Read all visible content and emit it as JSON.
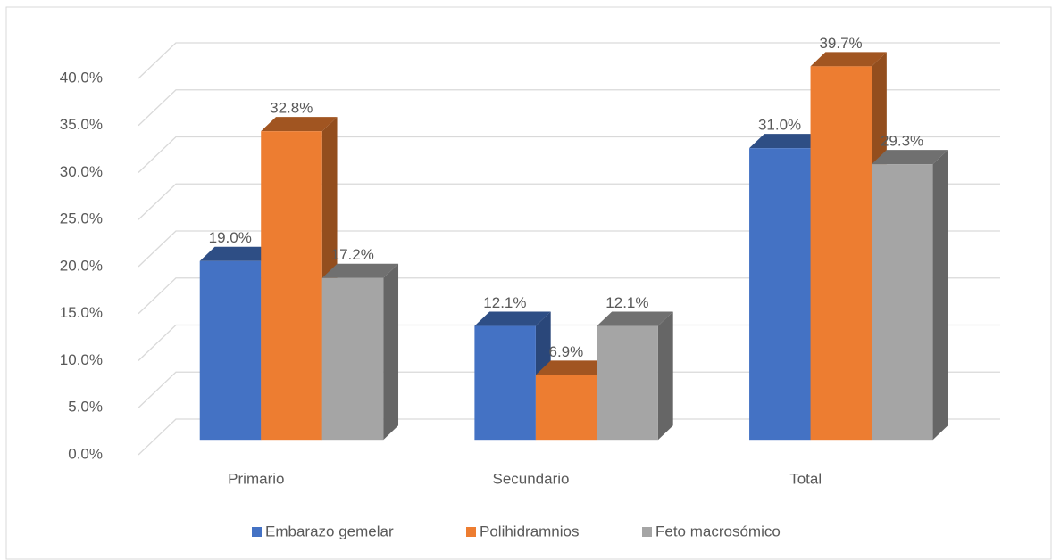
{
  "chart_data": {
    "type": "bar3d",
    "categories": [
      "Primario",
      "Secundario",
      "Total"
    ],
    "series": [
      {
        "name": "Embarazo gemelar",
        "color": "#4472c4",
        "values": [
          19.0,
          12.1,
          31.0
        ],
        "value_labels": [
          "19.0%",
          "12.1%",
          "31.0%"
        ]
      },
      {
        "name": "Polihidramnios",
        "color": "#ed7d31",
        "values": [
          32.8,
          6.9,
          39.7
        ],
        "value_labels": [
          "32.8%",
          "6.9%",
          "39.7%"
        ]
      },
      {
        "name": "Feto macrosómico",
        "color": "#a5a5a5",
        "values": [
          17.2,
          12.1,
          29.3
        ],
        "value_labels": [
          "17.2%",
          "12.1%",
          "29.3%"
        ]
      }
    ],
    "ylim": [
      0,
      40
    ],
    "yticks": [
      {
        "value": 0,
        "label": "0.0%"
      },
      {
        "value": 5,
        "label": "5.0%"
      },
      {
        "value": 10,
        "label": "10.0%"
      },
      {
        "value": 15,
        "label": "15.0%"
      },
      {
        "value": 20,
        "label": "20.0%"
      },
      {
        "value": 25,
        "label": "25.0%"
      },
      {
        "value": 30,
        "label": "30.0%"
      },
      {
        "value": 35,
        "label": "35.0%"
      },
      {
        "value": 40,
        "label": "40.0%"
      }
    ],
    "grid": true,
    "legend": "bottom"
  }
}
